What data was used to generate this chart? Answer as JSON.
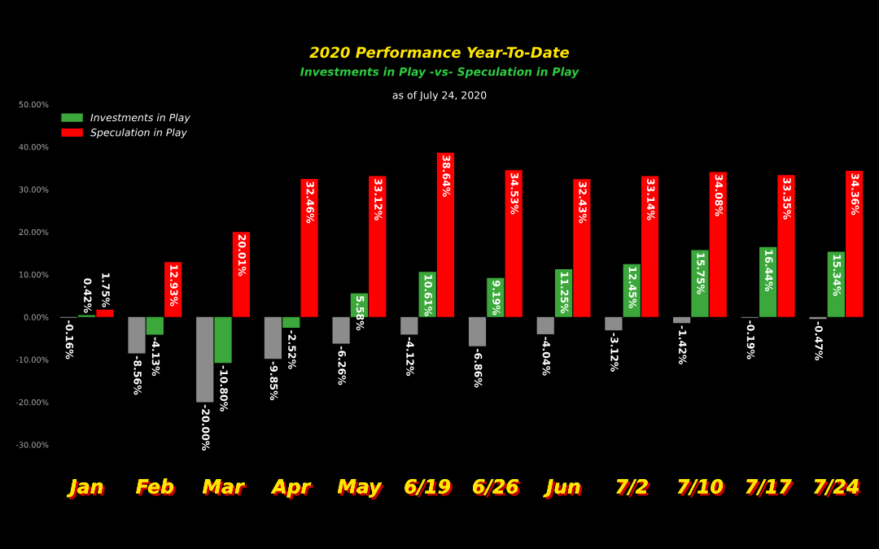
{
  "chart_data": {
    "type": "bar",
    "title": "2020 Performance Year-To-Date",
    "subtitle": "Investments in Play -vs- Speculation in Play",
    "annotations": [
      "as of July 24, 2020"
    ],
    "categories": [
      "Jan",
      "Feb",
      "Mar",
      "Apr",
      "May",
      "6/19",
      "6/26",
      "Jun",
      "7/2",
      "7/10",
      "7/17",
      "7/24"
    ],
    "series": [
      {
        "color": "#8c8c8c",
        "values": [
          -0.16,
          -8.56,
          -20.0,
          -9.85,
          -6.26,
          -4.12,
          -6.86,
          -4.04,
          -3.12,
          -1.42,
          -0.19,
          -0.47
        ],
        "value_labels": [
          "-0.16%",
          "-8.56%",
          "-20.00%",
          "-9.85%",
          "-6.26%",
          "-4.12%",
          "-6.86%",
          "-4.04%",
          "-3.12%",
          "-1.42%",
          "-0.19%",
          "-0.47%"
        ]
      },
      {
        "name": "Investments in Play",
        "color": "#3ca83c",
        "values": [
          0.42,
          -4.13,
          -10.8,
          -2.52,
          5.58,
          10.61,
          9.19,
          11.25,
          12.45,
          15.75,
          16.44,
          15.34
        ],
        "value_labels": [
          "0.42%",
          "-4.13%",
          "-10.80%",
          "-2.52%",
          "5.58%",
          "10.61%",
          "9.19%",
          "11.25%",
          "12.45%",
          "15.75%",
          "16.44%",
          "15.34%"
        ]
      },
      {
        "name": "Speculation in Play",
        "color": "#ff0000",
        "values": [
          1.75,
          12.93,
          20.01,
          32.46,
          33.12,
          38.64,
          34.53,
          32.43,
          33.14,
          34.08,
          33.35,
          34.36
        ],
        "value_labels": [
          "1.75%",
          "12.93%",
          "20.01%",
          "32.46%",
          "33.12%",
          "38.64%",
          "34.53%",
          "32.43%",
          "33.14%",
          "34.08%",
          "33.35%",
          "34.36%"
        ]
      }
    ],
    "ylim": [
      -30,
      50
    ],
    "yticks": [
      {
        "value": -30,
        "label": "-30.00%"
      },
      {
        "value": -20,
        "label": "-20.00%"
      },
      {
        "value": -10,
        "label": "-10.00%"
      },
      {
        "value": 0,
        "label": "0.00%"
      },
      {
        "value": 10,
        "label": "10.00%"
      },
      {
        "value": 20,
        "label": "20.00%"
      },
      {
        "value": 30,
        "label": "30.00%"
      },
      {
        "value": 40,
        "label": "40.00%"
      },
      {
        "value": 50,
        "label": "50.00%"
      }
    ],
    "grid": false,
    "legend": "top left"
  }
}
